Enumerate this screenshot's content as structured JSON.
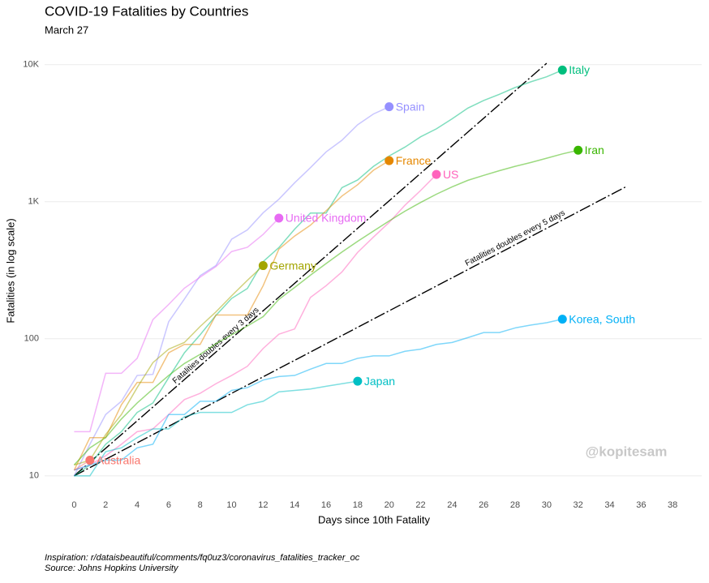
{
  "chart_data": {
    "type": "line",
    "title": "COVID-19 Fatalities by Countries",
    "subtitle": "March 27",
    "x_label": "Days since 10th Fatality",
    "y_label": "Fatalities (in log scale)",
    "caption": [
      "Inspiration:  r/dataisbeautiful/comments/fq0uz3/coronavirus_fatalities_tracker_oc",
      "Source:  Johns Hopkins University"
    ],
    "watermark": "@kopitesam",
    "log_y": true,
    "grid": true,
    "xlim": [
      -1,
      40
    ],
    "ylim": [
      7,
      12000
    ],
    "xticks": [
      0,
      2,
      4,
      6,
      8,
      10,
      12,
      14,
      16,
      18,
      20,
      22,
      24,
      26,
      28,
      30,
      32,
      34,
      36,
      38
    ],
    "yticks": [
      10,
      100,
      {
        "value": 1000,
        "label": "1K"
      },
      {
        "value": 10000,
        "label": "10K"
      }
    ],
    "x": [
      0,
      1,
      2,
      3,
      4,
      5,
      6,
      7,
      8,
      9,
      10,
      11,
      12,
      13,
      14,
      15,
      16,
      17,
      18,
      19,
      20,
      21,
      22,
      23,
      24,
      25,
      26,
      27,
      28,
      29,
      30,
      31,
      32
    ],
    "series": [
      {
        "name": "Italy",
        "color": "#00BE7D",
        "values": [
          10,
          12,
          17,
          21,
          29,
          34,
          52,
          79,
          107,
          148,
          197,
          233,
          366,
          463,
          631,
          827,
          827,
          1266,
          1441,
          1809,
          2158,
          2503,
          2978,
          3405,
          4032,
          4825,
          5476,
          6077,
          6820,
          7503,
          8165,
          9134,
          null
        ]
      },
      {
        "name": "Spain",
        "color": "#9590FF",
        "values": [
          10,
          17,
          28,
          35,
          54,
          55,
          133,
          195,
          289,
          342,
          533,
          623,
          830,
          1043,
          1375,
          1772,
          2311,
          2808,
          3647,
          4365,
          4934,
          null,
          null,
          null,
          null,
          null,
          null,
          null,
          null,
          null,
          null,
          null,
          null
        ]
      },
      {
        "name": "France",
        "color": "#E58700",
        "values": [
          11,
          19,
          19,
          33,
          48,
          48,
          79,
          91,
          91,
          149,
          149,
          149,
          244,
          451,
          562,
          674,
          860,
          1100,
          1331,
          1696,
          1995,
          null,
          null,
          null,
          null,
          null,
          null,
          null,
          null,
          null,
          null,
          null,
          null
        ]
      },
      {
        "name": "US",
        "color": "#FF62BC",
        "values": [
          11,
          12,
          14,
          17,
          21,
          22,
          28,
          36,
          40,
          47,
          54,
          63,
          85,
          108,
          118,
          200,
          244,
          307,
          427,
          552,
          706,
          942,
          1209,
          1581,
          null,
          null,
          null,
          null,
          null,
          null,
          null,
          null,
          null
        ]
      },
      {
        "name": "Iran",
        "color": "#39B600",
        "values": [
          12,
          16,
          19,
          26,
          34,
          43,
          54,
          66,
          77,
          92,
          107,
          124,
          145,
          194,
          237,
          291,
          354,
          429,
          514,
          611,
          724,
          853,
          988,
          1135,
          1284,
          1433,
          1556,
          1685,
          1812,
          1934,
          2077,
          2234,
          2378
        ]
      },
      {
        "name": "United Kingdom",
        "color": "#E76BF3",
        "values": [
          21,
          21,
          56,
          56,
          72,
          138,
          178,
          234,
          282,
          336,
          433,
          465,
          578,
          759,
          null,
          null,
          null,
          null,
          null,
          null,
          null,
          null,
          null,
          null,
          null,
          null,
          null,
          null,
          null,
          null,
          null,
          null,
          null
        ]
      },
      {
        "name": "Germany",
        "color": "#A3A500",
        "values": [
          12,
          13,
          20,
          28,
          44,
          67,
          84,
          94,
          123,
          157,
          206,
          267,
          342,
          null,
          null,
          null,
          null,
          null,
          null,
          null,
          null,
          null,
          null,
          null,
          null,
          null,
          null,
          null,
          null,
          null,
          null,
          null,
          null
        ]
      },
      {
        "name": "Korea, South",
        "color": "#00B0F6",
        "values": [
          11,
          12,
          13,
          13,
          16,
          17,
          28,
          28,
          35,
          35,
          42,
          44,
          50,
          53,
          54,
          60,
          66,
          66,
          72,
          75,
          75,
          81,
          84,
          91,
          94,
          102,
          111,
          111,
          120,
          126,
          131,
          139,
          null
        ]
      },
      {
        "name": "Japan",
        "color": "#00BFC4",
        "values": [
          10,
          10,
          15,
          16,
          19,
          22,
          22,
          27,
          29,
          29,
          29,
          33,
          35,
          41,
          42,
          43,
          45,
          47,
          49,
          null,
          null,
          null,
          null,
          null,
          null,
          null,
          null,
          null,
          null,
          null,
          null,
          null,
          null
        ]
      },
      {
        "name": "Australia",
        "color": "#F8766D",
        "values": [
          11,
          13,
          null,
          null,
          null,
          null,
          null,
          null,
          null,
          null,
          null,
          null,
          null,
          null,
          null,
          null,
          null,
          null,
          null,
          null,
          null,
          null,
          null,
          null,
          null,
          null,
          null,
          null,
          null,
          null,
          null,
          null,
          null
        ]
      }
    ],
    "reference_lines": [
      {
        "label": "Fatalities doubles every 3 days",
        "x": [
          0,
          30
        ],
        "values": [
          10,
          10240
        ]
      },
      {
        "label": "Fatalities doubles every 5 days",
        "x": [
          0,
          35
        ],
        "values": [
          10,
          1280
        ]
      }
    ]
  }
}
